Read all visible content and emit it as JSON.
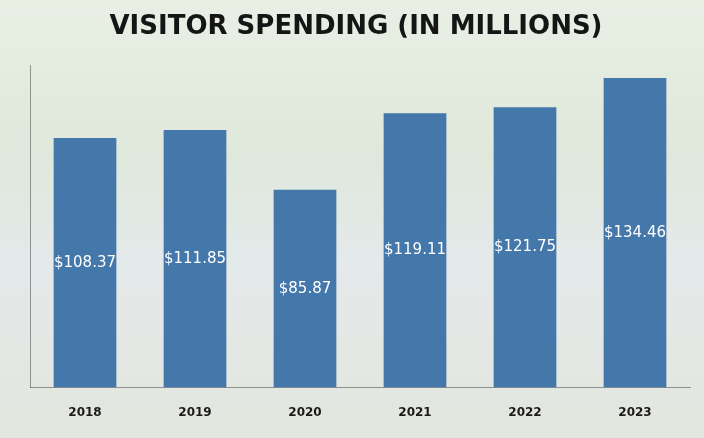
{
  "chart_data": {
    "type": "bar",
    "title": "VISITOR SPENDING (IN MILLIONS)",
    "categories": [
      "2018",
      "2019",
      "2020",
      "2021",
      "2022",
      "2023"
    ],
    "values": [
      108.37,
      111.85,
      85.87,
      119.11,
      121.75,
      134.46
    ],
    "value_labels": [
      "$108.37",
      "$111.85",
      "$85.87",
      "$119.11",
      "$121.75",
      "$134.46"
    ],
    "color": "#4477aa",
    "ylim": [
      0,
      140
    ],
    "grid": false,
    "data_labels": true,
    "tick_labels": "x"
  }
}
